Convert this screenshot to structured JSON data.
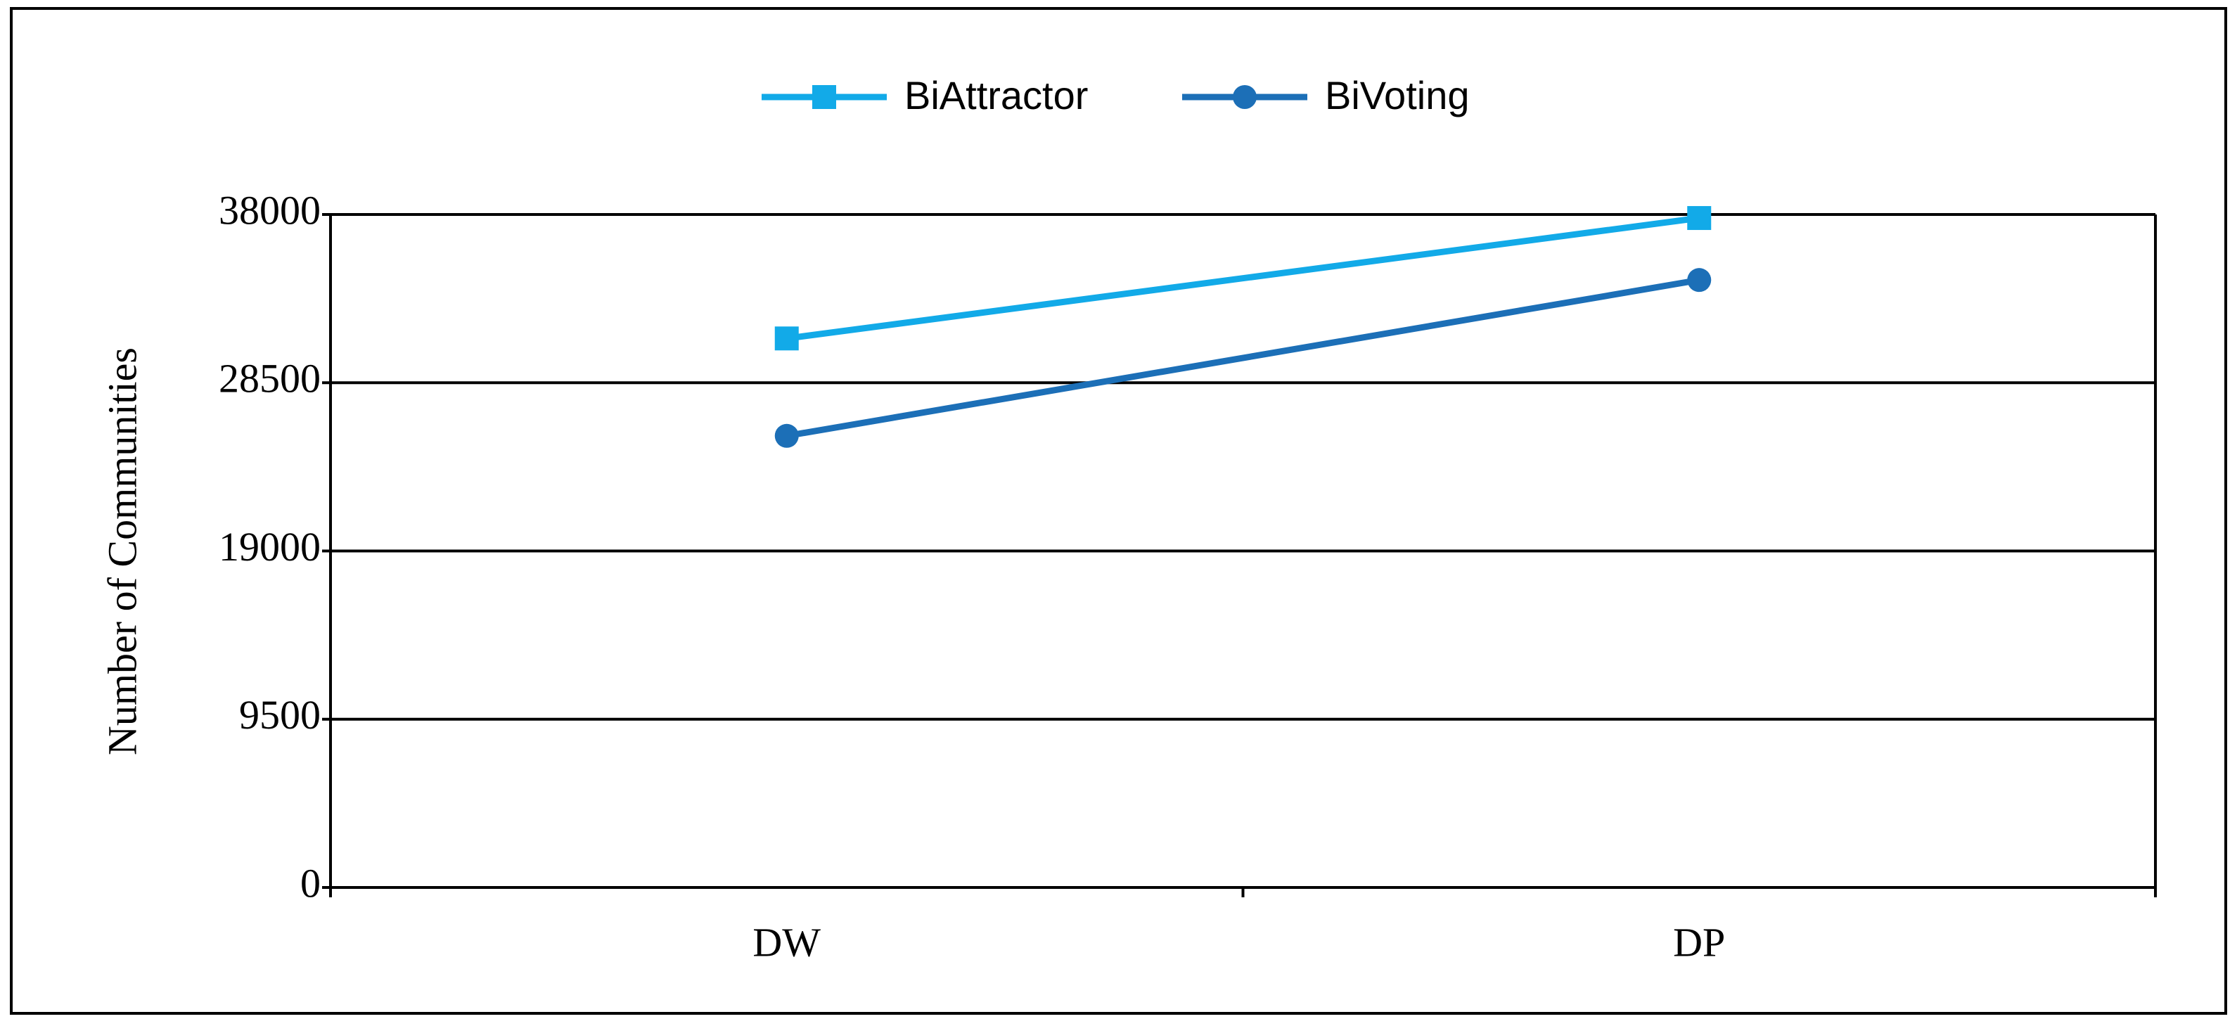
{
  "chart_data": {
    "type": "line",
    "categories": [
      "DW",
      "DP"
    ],
    "series": [
      {
        "name": "BiAttractor",
        "color": "#12aae8",
        "marker": "square",
        "values": [
          31000,
          37800
        ]
      },
      {
        "name": "BiVoting",
        "color": "#1c6fb7",
        "marker": "circle",
        "values": [
          25500,
          34300
        ]
      }
    ],
    "y_label": "Number of Communities",
    "ylim": [
      0,
      38000
    ],
    "yticks": [
      0,
      9500,
      19000,
      28500,
      38000
    ],
    "grid": true,
    "legend": "top"
  }
}
